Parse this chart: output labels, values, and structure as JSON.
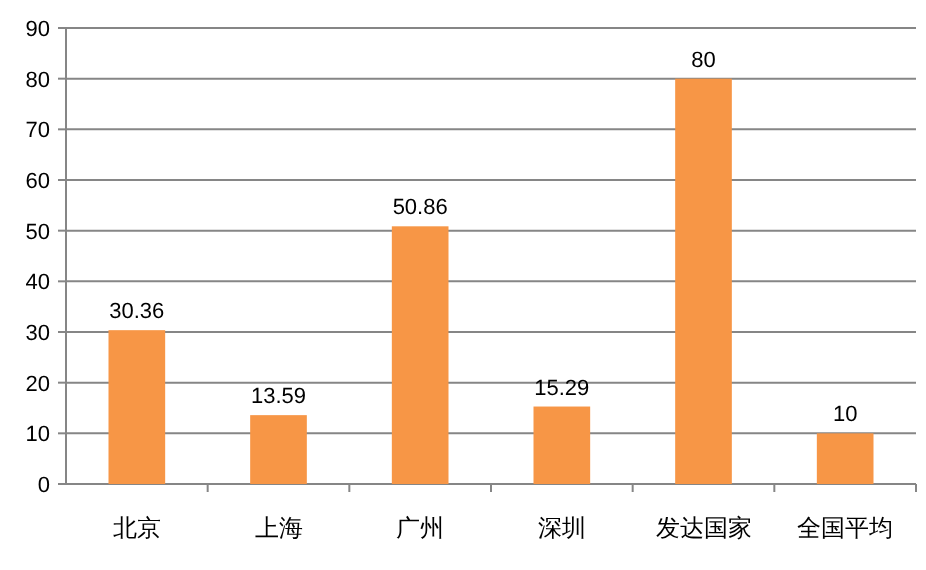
{
  "chart_data": {
    "type": "bar",
    "categories": [
      "北京",
      "上海",
      "广州",
      "深圳",
      "发达国家",
      "全国平均"
    ],
    "values": [
      30.36,
      13.59,
      50.86,
      15.29,
      80,
      10
    ],
    "color": "#f79646",
    "ylim": [
      0,
      90
    ],
    "yticks": [
      0,
      10,
      20,
      30,
      40,
      50,
      60,
      70,
      80,
      90
    ],
    "grid": "y",
    "data_labels": true
  }
}
